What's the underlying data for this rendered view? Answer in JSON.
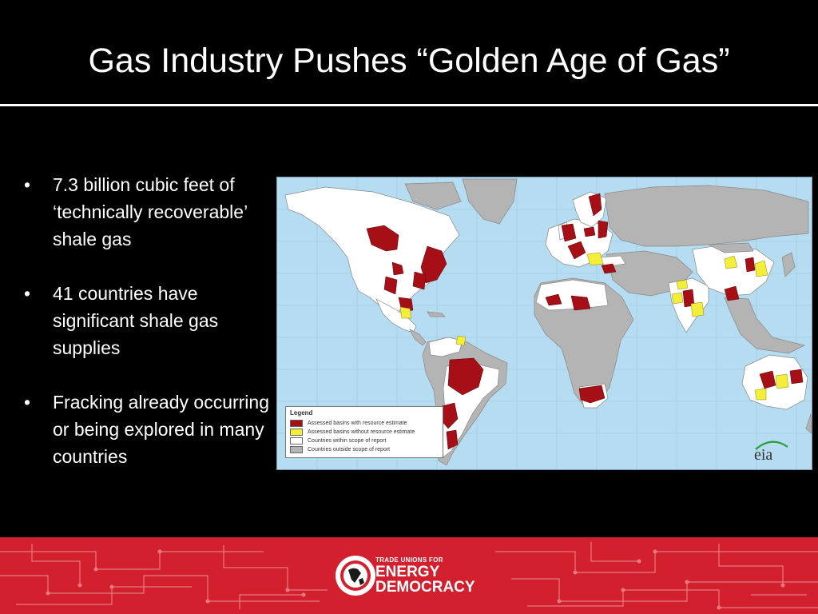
{
  "slide": {
    "title": "Gas Industry Pushes “Golden Age of Gas”",
    "bullets": [
      "7.3 billion cubic feet of ‘technically recoverable’ shale gas",
      "41 countries have significant shale gas supplies",
      "Fracking already occurring or being explored in many countries"
    ],
    "bullet_char": "•"
  },
  "map": {
    "legend": {
      "title": "Legend",
      "items": [
        {
          "label": "Assessed basins with resource estimate",
          "color": "#a50f15"
        },
        {
          "label": "Assessed basins without resource estimate",
          "color": "#f2ee3a"
        },
        {
          "label": "Countries within scope of report",
          "color": "#ffffff"
        },
        {
          "label": "Countries outside scope of report",
          "color": "#b4b4b4"
        }
      ]
    },
    "source_logo": "eia",
    "colors": {
      "ocean": "#b5dcf0",
      "outside": "#b4b4b4",
      "inside": "#ffffff",
      "estimate": "#a50f15",
      "no_estimate": "#f2ee3a"
    }
  },
  "footer": {
    "org_line1": "TRADE UNIONS FOR",
    "org_line2": "ENERGY",
    "org_line3": "DEMOCRACY",
    "color": "#d3202e"
  }
}
